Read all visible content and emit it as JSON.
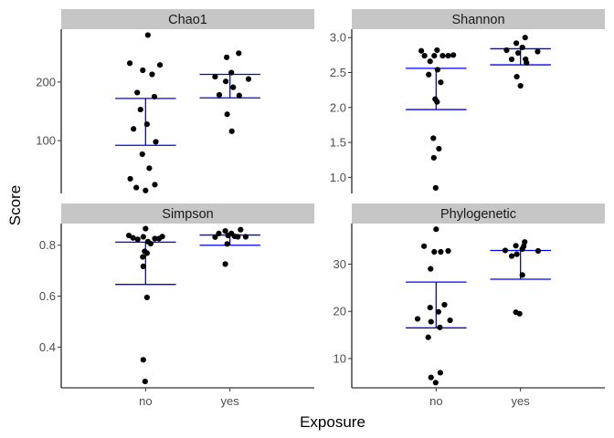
{
  "chart_data": {
    "type": "scatter",
    "xlabel": "Exposure",
    "ylabel": "Score",
    "categories": [
      "no",
      "yes"
    ],
    "grid": false,
    "facets": [
      {
        "title": "Chao1",
        "ylim": [
          10,
          290
        ],
        "yticks": [
          100,
          200
        ],
        "groups": [
          {
            "category": "no",
            "points": [
              {
                "jitter": -0.34,
                "y": 232
              },
              {
                "jitter": 0.05,
                "y": 280
              },
              {
                "jitter": -0.18,
                "y": 182
              },
              {
                "jitter": -0.06,
                "y": 220
              },
              {
                "jitter": 0.14,
                "y": 213
              },
              {
                "jitter": 0.31,
                "y": 229
              },
              {
                "jitter": 0.19,
                "y": 175
              },
              {
                "jitter": -0.11,
                "y": 153
              },
              {
                "jitter": 0.03,
                "y": 128
              },
              {
                "jitter": -0.26,
                "y": 120
              },
              {
                "jitter": 0.22,
                "y": 98
              },
              {
                "jitter": -0.07,
                "y": 77
              },
              {
                "jitter": 0.08,
                "y": 53
              },
              {
                "jitter": -0.33,
                "y": 35
              },
              {
                "jitter": -0.2,
                "y": 20
              },
              {
                "jitter": 0.0,
                "y": 15
              },
              {
                "jitter": 0.2,
                "y": 25
              }
            ],
            "q1": 92,
            "q3": 172,
            "median": 172
          },
          {
            "category": "yes",
            "points": [
              {
                "jitter": -0.32,
                "y": 209
              },
              {
                "jitter": -0.23,
                "y": 178
              },
              {
                "jitter": -0.07,
                "y": 242
              },
              {
                "jitter": 0.03,
                "y": 216
              },
              {
                "jitter": 0.19,
                "y": 249
              },
              {
                "jitter": -0.09,
                "y": 201
              },
              {
                "jitter": 0.07,
                "y": 191
              },
              {
                "jitter": 0.2,
                "y": 177
              },
              {
                "jitter": 0.4,
                "y": 205
              },
              {
                "jitter": -0.06,
                "y": 145
              },
              {
                "jitter": 0.04,
                "y": 116
              }
            ],
            "q1": 173,
            "q3": 213,
            "median": 198
          }
        ]
      },
      {
        "title": "Shannon",
        "ylim": [
          0.77,
          3.12
        ],
        "yticks": [
          1.0,
          1.5,
          2.0,
          2.5,
          3.0
        ],
        "groups": [
          {
            "category": "no",
            "points": [
              {
                "jitter": -0.32,
                "y": 2.81
              },
              {
                "jitter": -0.25,
                "y": 2.74
              },
              {
                "jitter": -0.13,
                "y": 2.66
              },
              {
                "jitter": -0.04,
                "y": 2.74
              },
              {
                "jitter": 0.02,
                "y": 2.82
              },
              {
                "jitter": 0.14,
                "y": 2.74
              },
              {
                "jitter": 0.26,
                "y": 2.74
              },
              {
                "jitter": 0.37,
                "y": 2.75
              },
              {
                "jitter": 0.03,
                "y": 2.54
              },
              {
                "jitter": -0.16,
                "y": 2.47
              },
              {
                "jitter": 0.1,
                "y": 2.36
              },
              {
                "jitter": -0.02,
                "y": 2.12
              },
              {
                "jitter": 0.02,
                "y": 2.08
              },
              {
                "jitter": -0.06,
                "y": 1.56
              },
              {
                "jitter": 0.06,
                "y": 1.41
              },
              {
                "jitter": -0.05,
                "y": 1.28
              },
              {
                "jitter": -0.01,
                "y": 0.85
              }
            ],
            "q1": 1.97,
            "q3": 2.56,
            "median": 2.56
          },
          {
            "category": "yes",
            "points": [
              {
                "jitter": -0.3,
                "y": 2.82
              },
              {
                "jitter": -0.19,
                "y": 2.69
              },
              {
                "jitter": -0.09,
                "y": 2.92
              },
              {
                "jitter": 0.04,
                "y": 2.86
              },
              {
                "jitter": 0.1,
                "y": 3.0
              },
              {
                "jitter": 0.11,
                "y": 2.69
              },
              {
                "jitter": 0.13,
                "y": 2.64
              },
              {
                "jitter": 0.37,
                "y": 2.8
              },
              {
                "jitter": -0.08,
                "y": 2.44
              },
              {
                "jitter": 0.0,
                "y": 2.31
              },
              {
                "jitter": -0.05,
                "y": 2.78
              }
            ],
            "q1": 2.61,
            "q3": 2.84,
            "median": 2.84
          }
        ]
      },
      {
        "title": "Simpson",
        "ylim": [
          0.24,
          0.885
        ],
        "yticks": [
          0.4,
          0.6,
          0.8
        ],
        "groups": [
          {
            "category": "no",
            "points": [
              {
                "jitter": -0.36,
                "y": 0.838
              },
              {
                "jitter": -0.27,
                "y": 0.829
              },
              {
                "jitter": -0.17,
                "y": 0.823
              },
              {
                "jitter": -0.05,
                "y": 0.833
              },
              {
                "jitter": 0.0,
                "y": 0.865
              },
              {
                "jitter": 0.05,
                "y": 0.814
              },
              {
                "jitter": 0.11,
                "y": 0.806
              },
              {
                "jitter": 0.2,
                "y": 0.826
              },
              {
                "jitter": 0.29,
                "y": 0.826
              },
              {
                "jitter": 0.36,
                "y": 0.834
              },
              {
                "jitter": -0.02,
                "y": 0.776
              },
              {
                "jitter": 0.03,
                "y": 0.769
              },
              {
                "jitter": -0.06,
                "y": 0.754
              },
              {
                "jitter": -0.05,
                "y": 0.717
              },
              {
                "jitter": 0.03,
                "y": 0.595
              },
              {
                "jitter": -0.05,
                "y": 0.35
              },
              {
                "jitter": -0.01,
                "y": 0.265
              }
            ],
            "q1": 0.646,
            "q3": 0.812,
            "median": 0.812
          },
          {
            "category": "yes",
            "points": [
              {
                "jitter": -0.32,
                "y": 0.832
              },
              {
                "jitter": -0.24,
                "y": 0.846
              },
              {
                "jitter": -0.1,
                "y": 0.856
              },
              {
                "jitter": -0.04,
                "y": 0.838
              },
              {
                "jitter": 0.03,
                "y": 0.846
              },
              {
                "jitter": 0.1,
                "y": 0.835
              },
              {
                "jitter": 0.17,
                "y": 0.833
              },
              {
                "jitter": 0.23,
                "y": 0.861
              },
              {
                "jitter": 0.34,
                "y": 0.833
              },
              {
                "jitter": -0.06,
                "y": 0.805
              },
              {
                "jitter": -0.1,
                "y": 0.726
              }
            ],
            "q1": 0.8,
            "q3": 0.84,
            "median": 0.84
          }
        ]
      },
      {
        "title": "Phylogenetic",
        "ylim": [
          3.8,
          38.6
        ],
        "yticks": [
          10,
          20,
          30
        ],
        "groups": [
          {
            "category": "no",
            "points": [
              {
                "jitter": -0.26,
                "y": 33.8
              },
              {
                "jitter": -0.4,
                "y": 18.4
              },
              {
                "jitter": -0.12,
                "y": 29.0
              },
              {
                "jitter": -0.04,
                "y": 32.6
              },
              {
                "jitter": 0.0,
                "y": 37.4
              },
              {
                "jitter": 0.1,
                "y": 32.6
              },
              {
                "jitter": 0.26,
                "y": 32.8
              },
              {
                "jitter": -0.13,
                "y": 20.8
              },
              {
                "jitter": -0.11,
                "y": 17.8
              },
              {
                "jitter": 0.05,
                "y": 19.9
              },
              {
                "jitter": 0.18,
                "y": 21.4
              },
              {
                "jitter": 0.3,
                "y": 18.1
              },
              {
                "jitter": -0.17,
                "y": 14.5
              },
              {
                "jitter": 0.08,
                "y": 16.6
              },
              {
                "jitter": -0.11,
                "y": 6.0
              },
              {
                "jitter": -0.01,
                "y": 4.9
              },
              {
                "jitter": 0.09,
                "y": 7.0
              }
            ],
            "q1": 16.5,
            "q3": 26.2,
            "median": 26.2
          },
          {
            "category": "yes",
            "points": [
              {
                "jitter": -0.33,
                "y": 32.9
              },
              {
                "jitter": -0.19,
                "y": 31.7
              },
              {
                "jitter": -0.1,
                "y": 33.9
              },
              {
                "jitter": -0.08,
                "y": 32.1
              },
              {
                "jitter": 0.04,
                "y": 33.2
              },
              {
                "jitter": 0.09,
                "y": 34.7
              },
              {
                "jitter": 0.38,
                "y": 32.8
              },
              {
                "jitter": 0.04,
                "y": 27.7
              },
              {
                "jitter": -0.1,
                "y": 19.8
              },
              {
                "jitter": -0.02,
                "y": 19.5
              },
              {
                "jitter": 0.07,
                "y": 33.8
              }
            ],
            "q1": 26.8,
            "q3": 32.9,
            "median": 32.9
          }
        ]
      }
    ]
  }
}
